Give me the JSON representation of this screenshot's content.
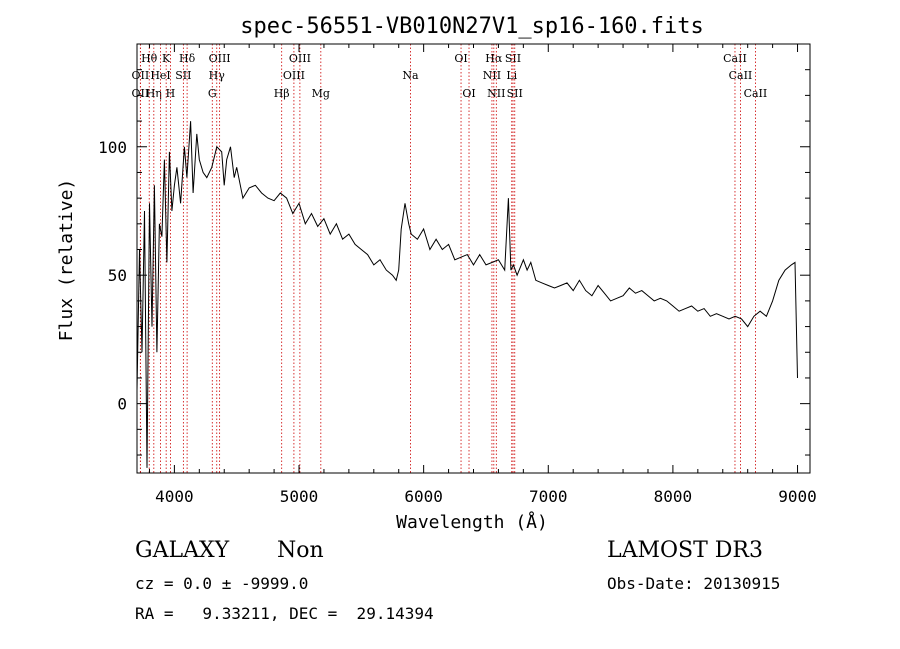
{
  "chart_data": {
    "type": "line",
    "title": "spec-56551-VB010N27V1_sp16-160.fits",
    "xlabel": "Wavelength (Å)",
    "ylabel": "Flux (relative)",
    "xlim": [
      3700,
      9100
    ],
    "ylim": [
      -27,
      140
    ],
    "xticks": [
      4000,
      5000,
      6000,
      7000,
      8000,
      9000
    ],
    "yticks": [
      0,
      50,
      100
    ],
    "series": [
      {
        "name": "spectrum",
        "x": [
          3700,
          3720,
          3740,
          3760,
          3780,
          3800,
          3820,
          3840,
          3860,
          3880,
          3900,
          3920,
          3940,
          3960,
          3980,
          4000,
          4020,
          4050,
          4080,
          4100,
          4130,
          4150,
          4180,
          4200,
          4230,
          4260,
          4300,
          4340,
          4380,
          4400,
          4420,
          4450,
          4480,
          4500,
          4550,
          4600,
          4650,
          4700,
          4750,
          4800,
          4850,
          4900,
          4950,
          5000,
          5050,
          5100,
          5150,
          5200,
          5250,
          5300,
          5350,
          5400,
          5450,
          5500,
          5550,
          5600,
          5650,
          5700,
          5750,
          5780,
          5800,
          5820,
          5850,
          5880,
          5900,
          5950,
          6000,
          6050,
          6100,
          6150,
          6200,
          6250,
          6300,
          6350,
          6400,
          6450,
          6500,
          6550,
          6600,
          6650,
          6680,
          6700,
          6720,
          6750,
          6800,
          6830,
          6860,
          6900,
          6950,
          7000,
          7050,
          7100,
          7150,
          7200,
          7250,
          7300,
          7350,
          7400,
          7450,
          7500,
          7550,
          7600,
          7650,
          7700,
          7750,
          7800,
          7850,
          7900,
          7950,
          8000,
          8050,
          8100,
          8150,
          8200,
          8250,
          8300,
          8350,
          8400,
          8450,
          8500,
          8550,
          8600,
          8650,
          8700,
          8750,
          8800,
          8850,
          8900,
          8950,
          8980,
          9000
        ],
        "y": [
          5,
          60,
          20,
          75,
          -25,
          78,
          30,
          85,
          20,
          70,
          65,
          95,
          55,
          98,
          75,
          85,
          92,
          78,
          100,
          88,
          110,
          82,
          105,
          95,
          90,
          88,
          92,
          100,
          98,
          85,
          95,
          100,
          88,
          92,
          80,
          84,
          85,
          82,
          80,
          79,
          82,
          80,
          74,
          78,
          70,
          74,
          69,
          72,
          66,
          70,
          64,
          66,
          62,
          60,
          58,
          54,
          56,
          52,
          50,
          48,
          52,
          68,
          78,
          70,
          66,
          64,
          68,
          60,
          64,
          60,
          62,
          56,
          57,
          58,
          54,
          58,
          54,
          55,
          56,
          52,
          80,
          52,
          54,
          50,
          56,
          52,
          55,
          48,
          47,
          46,
          45,
          46,
          47,
          44,
          48,
          44,
          42,
          46,
          43,
          40,
          41,
          42,
          45,
          43,
          44,
          42,
          40,
          41,
          40,
          38,
          36,
          37,
          38,
          36,
          37,
          34,
          35,
          34,
          33,
          34,
          33,
          30,
          34,
          36,
          34,
          40,
          48,
          52,
          54,
          55,
          10
        ]
      }
    ],
    "line_markers": [
      {
        "label": "OII",
        "wavelength": 3727,
        "row": 2
      },
      {
        "label": "OII",
        "wavelength": 3727,
        "row": 3
      },
      {
        "label": "Hθ",
        "wavelength": 3798,
        "row": 1
      },
      {
        "label": "Hη",
        "wavelength": 3835,
        "row": 3
      },
      {
        "label": "HeI",
        "wavelength": 3889,
        "row": 2
      },
      {
        "label": "K",
        "wavelength": 3934,
        "row": 1
      },
      {
        "label": "H",
        "wavelength": 3968,
        "row": 3
      },
      {
        "label": "SII",
        "wavelength": 4072,
        "row": 2
      },
      {
        "label": "Hδ",
        "wavelength": 4102,
        "row": 1
      },
      {
        "label": "G",
        "wavelength": 4304,
        "row": 3
      },
      {
        "label": "Hγ",
        "wavelength": 4340,
        "row": 2
      },
      {
        "label": "OIII",
        "wavelength": 4363,
        "row": 1
      },
      {
        "label": "Hβ",
        "wavelength": 4861,
        "row": 3
      },
      {
        "label": "OIII",
        "wavelength": 4959,
        "row": 2
      },
      {
        "label": "OIII",
        "wavelength": 5007,
        "row": 1
      },
      {
        "label": "Mg",
        "wavelength": 5175,
        "row": 3
      },
      {
        "label": "Na",
        "wavelength": 5894,
        "row": 2
      },
      {
        "label": "OI",
        "wavelength": 6300,
        "row": 1
      },
      {
        "label": "OI",
        "wavelength": 6364,
        "row": 3
      },
      {
        "label": "NII",
        "wavelength": 6548,
        "row": 2
      },
      {
        "label": "Hα",
        "wavelength": 6563,
        "row": 1
      },
      {
        "label": "NII",
        "wavelength": 6583,
        "row": 3
      },
      {
        "label": "SII",
        "wavelength": 6717,
        "row": 1
      },
      {
        "label": "Li",
        "wavelength": 6707,
        "row": 2
      },
      {
        "label": "SII",
        "wavelength": 6731,
        "row": 3
      },
      {
        "label": "CaII",
        "wavelength": 8498,
        "row": 1
      },
      {
        "label": "CaII",
        "wavelength": 8542,
        "row": 2
      },
      {
        "label": "CaII",
        "wavelength": 8662,
        "row": 3
      }
    ]
  },
  "info": {
    "object_class": "GALAXY",
    "subclass": "Non",
    "survey": "LAMOST DR3",
    "redshift_text": "cz = 0.0 ± -9999.0",
    "obs_date_text": "Obs-Date: 20130915",
    "coords_text": "RA =   9.33211, DEC =  29.14394"
  }
}
